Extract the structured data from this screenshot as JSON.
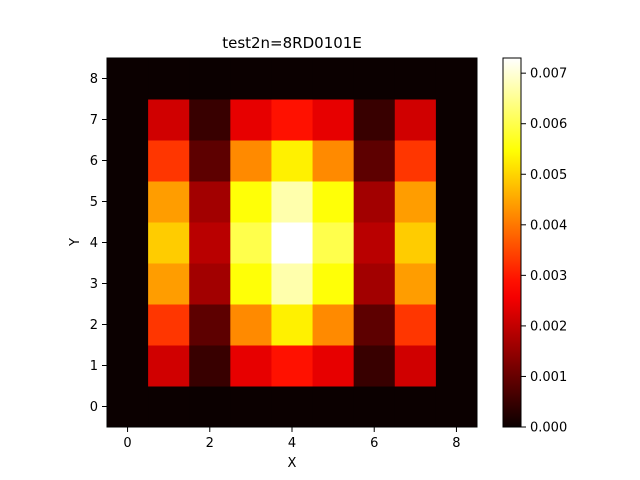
{
  "chart_data": {
    "type": "heatmap",
    "title": "test2n=8RD0101E",
    "xlabel": "X",
    "ylabel": "Y",
    "colormap": "hot",
    "x": [
      0,
      1,
      2,
      3,
      4,
      5,
      6,
      7,
      8
    ],
    "y": [
      0,
      1,
      2,
      3,
      4,
      5,
      6,
      7,
      8
    ],
    "xlim": [
      -0.5,
      8.5
    ],
    "ylim": [
      -0.5,
      8.5
    ],
    "xticks": [
      "0",
      "2",
      "4",
      "6",
      "8"
    ],
    "yticks": [
      "0",
      "1",
      "2",
      "3",
      "4",
      "5",
      "6",
      "7",
      "8"
    ],
    "values": [
      [
        0,
        0,
        0,
        0,
        0,
        0,
        0,
        0,
        0
      ],
      [
        0,
        0.00215,
        0.0005,
        0.0024,
        0.0029,
        0.0024,
        0.0005,
        0.00215,
        0
      ],
      [
        0,
        0.0033,
        0.0009,
        0.0042,
        0.0053,
        0.0042,
        0.0009,
        0.0033,
        0
      ],
      [
        0,
        0.0044,
        0.00165,
        0.0055,
        0.0067,
        0.0055,
        0.00165,
        0.0044,
        0
      ],
      [
        0,
        0.0049,
        0.0019,
        0.006,
        0.0073,
        0.006,
        0.0019,
        0.0049,
        0
      ],
      [
        0,
        0.0044,
        0.00165,
        0.0055,
        0.0067,
        0.0055,
        0.00165,
        0.0044,
        0
      ],
      [
        0,
        0.0033,
        0.0009,
        0.0042,
        0.0053,
        0.0042,
        0.0009,
        0.0033,
        0
      ],
      [
        0,
        0.00215,
        0.0005,
        0.0024,
        0.0029,
        0.0024,
        0.0005,
        0.00215,
        0
      ],
      [
        0,
        0,
        0,
        0,
        0,
        0,
        0,
        0,
        0
      ]
    ],
    "colorbar": {
      "min": 0,
      "max": 0.0073,
      "ticks": [
        "0.000",
        "0.001",
        "0.002",
        "0.003",
        "0.004",
        "0.005",
        "0.006",
        "0.007"
      ]
    },
    "grid": false
  }
}
